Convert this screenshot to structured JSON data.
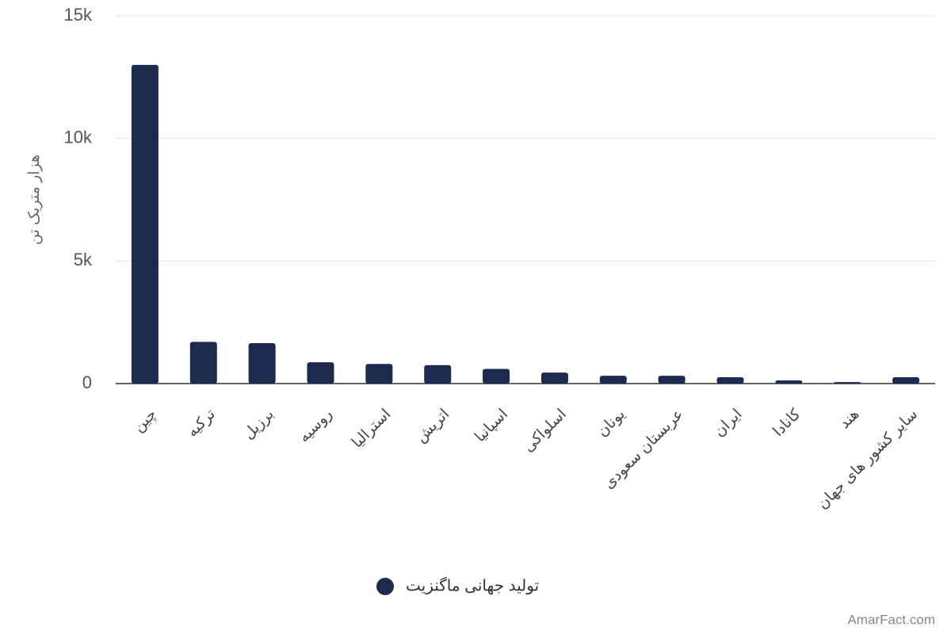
{
  "chart_data": {
    "type": "bar",
    "y_label": "هزار متریک تن",
    "categories": [
      "چین",
      "ترکیه",
      "برزیل",
      "روسیه",
      "استرالیا",
      "اتریش",
      "اسپانیا",
      "اسلواکی",
      "یونان",
      "عربستان سعودی",
      "ایران",
      "کانادا",
      "هند",
      "سایر کشور های جهان"
    ],
    "series": [
      {
        "name": "تولید جهانی ماگنزیت",
        "color": "#1c2a4f",
        "values": [
          13000,
          1700,
          1650,
          870,
          800,
          750,
          600,
          450,
          320,
          320,
          260,
          130,
          60,
          260
        ]
      }
    ],
    "ylim": [
      0,
      15000
    ],
    "yticks": [
      0,
      {
        "value": 5000,
        "label": "5k"
      },
      {
        "value": 10000,
        "label": "10k"
      },
      {
        "value": 15000,
        "label": "15k"
      }
    ],
    "grid": true,
    "legend": "bottom",
    "watermark": "AmarFact.com"
  }
}
